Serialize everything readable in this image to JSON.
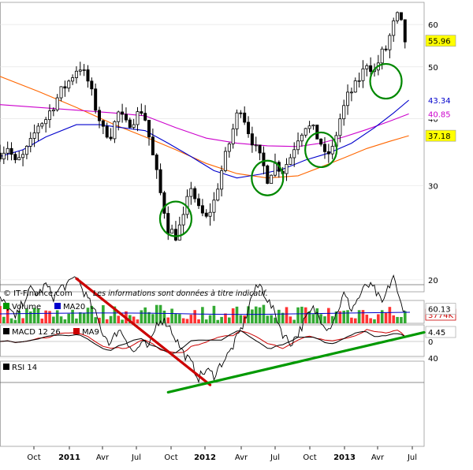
{
  "chart_data": [
    {
      "type": "candlestick",
      "panel": "price",
      "scale": "log",
      "x_ticks": [
        "Oct",
        "2011",
        "Avr",
        "Jul",
        "Oct",
        "2012",
        "Avr",
        "Jul",
        "Oct",
        "2013",
        "Avr",
        "Jul"
      ],
      "y_ticks": [
        20,
        30,
        40,
        50,
        60
      ],
      "ylim": [
        19,
        66
      ],
      "series": [
        {
          "name": "MA20",
          "color": "#0000cc",
          "last": 43.34
        },
        {
          "name": "",
          "color": "#cc00cc",
          "last": 40.85
        },
        {
          "name": "",
          "color": "#ff6600",
          "last": 37.18
        }
      ],
      "last_price": 55.96,
      "price_path": [
        [
          0,
          34.5
        ],
        [
          2,
          35.5
        ],
        [
          4,
          33
        ],
        [
          6,
          34
        ],
        [
          8,
          36
        ],
        [
          10,
          39
        ],
        [
          12,
          40
        ],
        [
          14,
          42.5
        ],
        [
          16,
          45
        ],
        [
          18,
          47
        ],
        [
          20,
          49.5
        ],
        [
          21,
          50
        ],
        [
          23,
          47
        ],
        [
          25,
          42
        ],
        [
          27,
          38
        ],
        [
          29,
          37.5
        ],
        [
          31,
          41
        ],
        [
          33,
          39
        ],
        [
          35,
          40
        ],
        [
          37,
          41.5
        ],
        [
          38,
          40
        ],
        [
          40,
          34
        ],
        [
          42,
          29
        ],
        [
          44,
          25
        ],
        [
          46,
          24.2
        ],
        [
          48,
          26
        ],
        [
          50,
          30
        ],
        [
          52,
          27
        ],
        [
          54,
          26
        ],
        [
          56,
          28
        ],
        [
          58,
          32
        ],
        [
          60,
          36
        ],
        [
          62,
          40.5
        ],
        [
          63,
          42
        ],
        [
          65,
          38
        ],
        [
          67,
          35
        ],
        [
          69,
          32.5
        ],
        [
          70,
          31
        ],
        [
          72,
          33
        ],
        [
          74,
          32
        ],
        [
          76,
          34
        ],
        [
          78,
          37
        ],
        [
          80,
          39
        ],
        [
          82,
          38
        ],
        [
          84,
          36
        ],
        [
          85,
          34
        ],
        [
          87,
          35
        ],
        [
          89,
          40
        ],
        [
          91,
          44
        ],
        [
          93,
          46
        ],
        [
          95,
          49
        ],
        [
          96,
          51
        ],
        [
          98,
          49
        ],
        [
          100,
          53
        ],
        [
          101,
          54
        ],
        [
          103,
          60
        ],
        [
          104,
          62
        ],
        [
          105,
          60
        ],
        [
          106,
          55.96
        ]
      ],
      "circles": [
        {
          "x_week": 46,
          "price": 26
        },
        {
          "x_week": 70,
          "price": 31
        },
        {
          "x_week": 84,
          "price": 35
        },
        {
          "x_week": 101,
          "price": 47
        }
      ],
      "credit": "© IT-Finance.com",
      "disclaimer": "Les informations sont données à titre indicatif."
    },
    {
      "type": "bar",
      "panel": "volume",
      "series": [
        {
          "name": "Volume",
          "color": "#009900"
        },
        {
          "name": "MA20",
          "color": "#0000cc"
        }
      ],
      "last_label": "3774K"
    },
    {
      "type": "line",
      "panel": "macd",
      "title": "MACD 12 26",
      "series": [
        {
          "name": "",
          "color": "#000000"
        },
        {
          "name": "MA9",
          "color": "#cc0000"
        }
      ],
      "y_ticks": [
        0
      ],
      "last_value": 4.45
    },
    {
      "type": "line",
      "panel": "rsi",
      "title": "RSI 14",
      "y_ticks": [
        40
      ],
      "bands": [
        30,
        70
      ],
      "last_value": 60.13,
      "rsi_path": [
        [
          0,
          64
        ],
        [
          2,
          61
        ],
        [
          4,
          56
        ],
        [
          6,
          63
        ],
        [
          8,
          68
        ],
        [
          10,
          66
        ],
        [
          12,
          70
        ],
        [
          14,
          65
        ],
        [
          16,
          69
        ],
        [
          18,
          70
        ],
        [
          19,
          72
        ],
        [
          20,
          74
        ],
        [
          21,
          70
        ],
        [
          23,
          64
        ],
        [
          25,
          58
        ],
        [
          27,
          50
        ],
        [
          29,
          46
        ],
        [
          31,
          52
        ],
        [
          33,
          48
        ],
        [
          35,
          42
        ],
        [
          37,
          46
        ],
        [
          39,
          44
        ],
        [
          41,
          54
        ],
        [
          42,
          56
        ],
        [
          44,
          54
        ],
        [
          46,
          48
        ],
        [
          48,
          42
        ],
        [
          50,
          38
        ],
        [
          52,
          32
        ],
        [
          54,
          35
        ],
        [
          56,
          33
        ],
        [
          58,
          38
        ],
        [
          60,
          42
        ],
        [
          62,
          48
        ],
        [
          64,
          55
        ],
        [
          66,
          66
        ],
        [
          68,
          70
        ],
        [
          70,
          64
        ],
        [
          72,
          58
        ],
        [
          74,
          50
        ],
        [
          76,
          46
        ],
        [
          78,
          50
        ],
        [
          80,
          56
        ],
        [
          82,
          60
        ],
        [
          84,
          56
        ],
        [
          86,
          52
        ],
        [
          88,
          58
        ],
        [
          90,
          66
        ],
        [
          92,
          60
        ],
        [
          94,
          65
        ],
        [
          96,
          70
        ],
        [
          98,
          68
        ],
        [
          100,
          62
        ],
        [
          102,
          70
        ],
        [
          103,
          74
        ],
        [
          104,
          66
        ],
        [
          105,
          62
        ],
        [
          106,
          60.13
        ]
      ],
      "trendlines": [
        {
          "color": "#cc0000",
          "from": [
            20,
            72.5
          ],
          "to": [
            55,
            29
          ]
        },
        {
          "color": "#009900",
          "from": [
            44,
            26
          ],
          "to": [
            111,
            50.5
          ]
        }
      ]
    }
  ]
}
